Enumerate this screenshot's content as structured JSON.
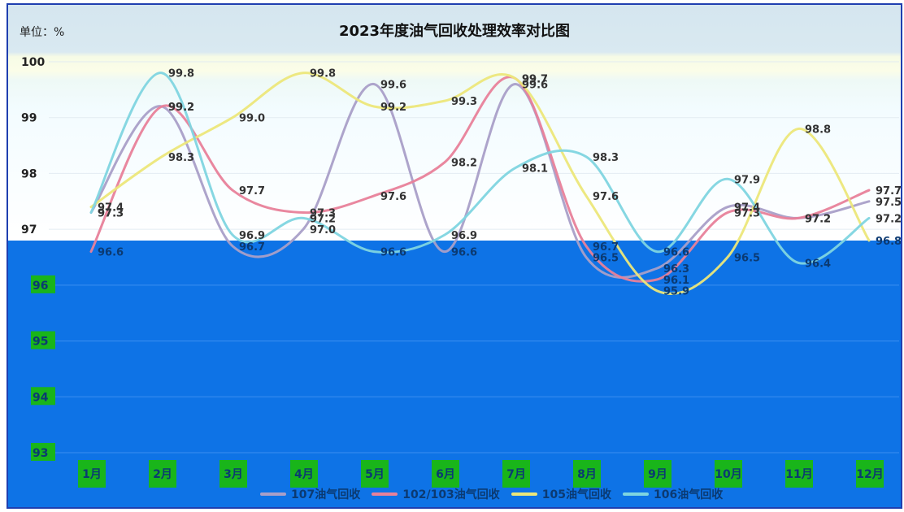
{
  "header": {
    "title": "2023年度油气回收处理效率对比图",
    "unit": "单位：%"
  },
  "chart_data": {
    "type": "line",
    "title": "2023年度油气回收处理效率对比图",
    "ylabel": "单位：%",
    "xlabel": "",
    "categories": [
      "1月",
      "2月",
      "3月",
      "4月",
      "5月",
      "6月",
      "7月",
      "8月",
      "9月",
      "10月",
      "11月",
      "12月"
    ],
    "ylim": [
      92.6,
      100.2
    ],
    "yticks": [
      93,
      94,
      95,
      96,
      97,
      98,
      99,
      100
    ],
    "legend_position": "bottom",
    "grid": true,
    "series": [
      {
        "name": "107油气回收",
        "color": "#a99fc8",
        "values": [
          97.3,
          99.2,
          96.7,
          97.0,
          99.6,
          96.6,
          99.6,
          96.5,
          96.3,
          97.4,
          97.2,
          97.5
        ]
      },
      {
        "name": "102/103油气回收",
        "color": "#e8819a",
        "values": [
          96.6,
          99.2,
          97.7,
          97.3,
          97.6,
          98.2,
          99.7,
          96.7,
          96.1,
          97.3,
          97.2,
          97.7
        ]
      },
      {
        "name": "105油气回收",
        "color": "#ece77a",
        "values": [
          97.4,
          98.3,
          99.0,
          99.8,
          99.2,
          99.3,
          99.7,
          97.6,
          95.9,
          96.5,
          98.8,
          96.8
        ]
      },
      {
        "name": "106油气回收",
        "color": "#7fd5e0",
        "values": [
          97.3,
          99.8,
          96.9,
          97.2,
          96.6,
          96.9,
          98.1,
          98.3,
          96.6,
          97.9,
          96.4,
          97.2
        ]
      }
    ]
  },
  "colors": {
    "plot_background": "#0e73e6",
    "top_band": "#d5e6ef",
    "legend_text": "#0b3a72"
  }
}
